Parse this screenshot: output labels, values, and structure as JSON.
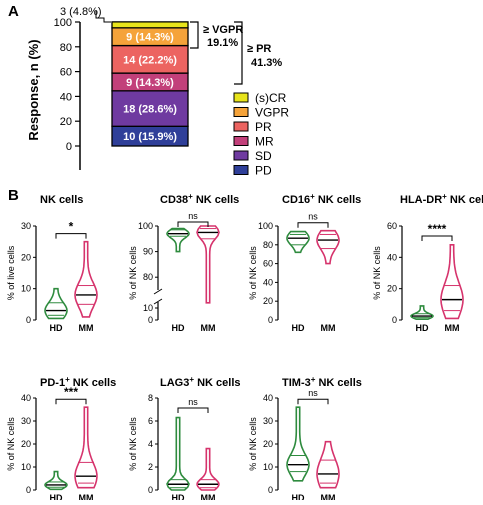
{
  "colors": {
    "hd": "#2e8b3e",
    "mm": "#d6336c",
    "scr": "#e8e41b",
    "vgpr": "#f5a33a",
    "pr": "#ec6461",
    "mr": "#c2407a",
    "sd": "#6f3aa0",
    "pd": "#2f3f99"
  },
  "panel_a": {
    "label": "A",
    "ylabel": "Response, n (%)",
    "yticks": [
      "0",
      "20",
      "40",
      "60",
      "80",
      "100"
    ],
    "top_annotation": "3 (4.8%)",
    "vgpr_bracket_line1": "≥ VGPR",
    "vgpr_bracket_line2": "19.1%",
    "pr_bracket_line1": "≥ PR",
    "pr_bracket_line2": "41.3%"
  },
  "panel_b": {
    "label": "B"
  },
  "chart_data": [
    {
      "type": "bar",
      "title": "",
      "xlabel": "",
      "ylabel": "Response, n (%)",
      "ylim": [
        0,
        100
      ],
      "stacked": true,
      "series": [
        {
          "name": "PD",
          "count": 10,
          "label": "10 (15.9%)",
          "value": 15.9,
          "color": "#2f3f99"
        },
        {
          "name": "SD",
          "count": 18,
          "label": "18 (28.6%)",
          "value": 28.6,
          "color": "#6f3aa0"
        },
        {
          "name": "MR",
          "count": 9,
          "label": "9 (14.3%)",
          "value": 14.3,
          "color": "#c2407a"
        },
        {
          "name": "PR",
          "count": 14,
          "label": "14 (22.2%)",
          "value": 22.2,
          "color": "#ec6461"
        },
        {
          "name": "VGPR",
          "count": 9,
          "label": "9 (14.3%)",
          "value": 14.3,
          "color": "#f5a33a"
        },
        {
          "name": "(s)CR",
          "count": 3,
          "label": "3 (4.8%)",
          "value": 4.8,
          "color": "#e8e41b"
        }
      ],
      "legend": [
        "(s)CR",
        "VGPR",
        "PR",
        "MR",
        "SD",
        "PD"
      ]
    },
    {
      "type": "violin",
      "title": "NK cells",
      "title_sup": "",
      "ylabel": "% of live cells",
      "yticks": [
        0,
        10,
        20,
        30
      ],
      "ylim": [
        0,
        30
      ],
      "categories": [
        "HD",
        "MM"
      ],
      "significance": "*",
      "groups": [
        {
          "name": "HD",
          "min": 0.5,
          "q1": 1.5,
          "median": 3.0,
          "q3": 5.5,
          "max": 10.0
        },
        {
          "name": "MM",
          "min": 1.0,
          "q1": 5.0,
          "median": 8.0,
          "q3": 11.0,
          "max": 25.0
        }
      ]
    },
    {
      "type": "violin",
      "title": "NK cells",
      "title_sup": "CD38",
      "ylabel": "% of NK cells",
      "yticks": [
        0,
        10,
        80,
        90,
        100
      ],
      "ylim": [
        0,
        100
      ],
      "axis_break": [
        15,
        75
      ],
      "categories": [
        "HD",
        "MM"
      ],
      "significance": "ns",
      "groups": [
        {
          "name": "HD",
          "min": 90,
          "q1": 96,
          "median": 97,
          "q3": 98.5,
          "max": 99
        },
        {
          "name": "MM",
          "min": 70,
          "q1": 95,
          "median": 97.5,
          "q3": 99,
          "max": 100
        }
      ]
    },
    {
      "type": "violin",
      "title": "NK cells",
      "title_sup": "CD16",
      "ylabel": "% of NK cells",
      "yticks": [
        0,
        20,
        40,
        60,
        80,
        100
      ],
      "ylim": [
        0,
        100
      ],
      "categories": [
        "HD",
        "MM"
      ],
      "significance": "ns",
      "groups": [
        {
          "name": "HD",
          "min": 72,
          "q1": 80,
          "median": 87,
          "q3": 91,
          "max": 94
        },
        {
          "name": "MM",
          "min": 60,
          "q1": 76,
          "median": 85,
          "q3": 91,
          "max": 95
        }
      ]
    },
    {
      "type": "violin",
      "title": "NK cells",
      "title_sup": "HLA-DR",
      "ylabel": "% of NK cells",
      "yticks": [
        0,
        20,
        40,
        60
      ],
      "ylim": [
        0,
        60
      ],
      "categories": [
        "HD",
        "MM"
      ],
      "significance": "****",
      "groups": [
        {
          "name": "HD",
          "min": 0.5,
          "q1": 1.5,
          "median": 2.5,
          "q3": 4.0,
          "max": 9.0
        },
        {
          "name": "MM",
          "min": 1.0,
          "q1": 6.0,
          "median": 13.0,
          "q3": 22.0,
          "max": 48.0
        }
      ]
    },
    {
      "type": "violin",
      "title": "NK cells",
      "title_sup": "PD-1",
      "ylabel": "% of NK cells",
      "yticks": [
        0,
        10,
        20,
        30,
        40
      ],
      "ylim": [
        0,
        40
      ],
      "categories": [
        "HD",
        "MM"
      ],
      "significance": "***",
      "groups": [
        {
          "name": "HD",
          "min": 0.3,
          "q1": 1.2,
          "median": 2.2,
          "q3": 3.5,
          "max": 8.0
        },
        {
          "name": "MM",
          "min": 1.0,
          "q1": 3.0,
          "median": 6.0,
          "q3": 12.0,
          "max": 36.0
        }
      ]
    },
    {
      "type": "violin",
      "title": "NK cells",
      "title_sup": "LAG3",
      "ylabel": "% of NK cells",
      "yticks": [
        0,
        2,
        4,
        6,
        8
      ],
      "ylim": [
        0,
        8
      ],
      "categories": [
        "HD",
        "MM"
      ],
      "significance": "ns",
      "groups": [
        {
          "name": "HD",
          "min": 0.0,
          "q1": 0.2,
          "median": 0.5,
          "q3": 0.9,
          "max": 6.3
        },
        {
          "name": "MM",
          "min": 0.0,
          "q1": 0.2,
          "median": 0.5,
          "q3": 0.9,
          "max": 3.6
        }
      ]
    },
    {
      "type": "violin",
      "title": "NK cells",
      "title_sup": "TIM-3",
      "ylabel": "% of NK cells",
      "yticks": [
        0,
        10,
        20,
        30,
        40
      ],
      "ylim": [
        0,
        40
      ],
      "categories": [
        "HD",
        "MM"
      ],
      "significance": "ns",
      "groups": [
        {
          "name": "HD",
          "min": 4,
          "q1": 8,
          "median": 11,
          "q3": 15,
          "max": 36
        },
        {
          "name": "MM",
          "min": 1,
          "q1": 3,
          "median": 7,
          "q3": 13,
          "max": 21
        }
      ]
    }
  ]
}
